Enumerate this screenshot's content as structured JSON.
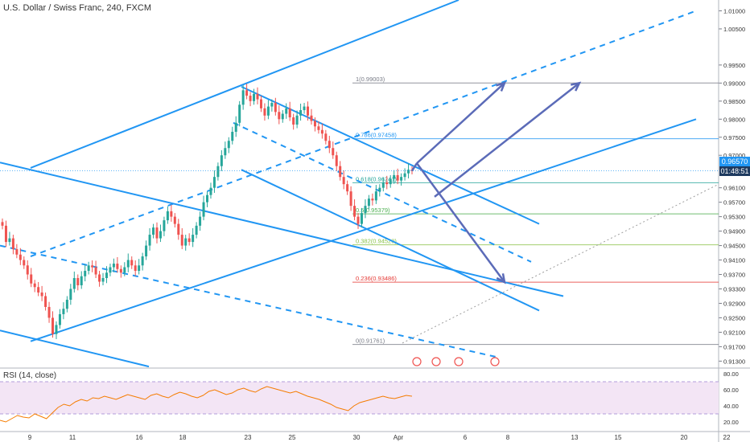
{
  "header": {
    "title": "U.S. Dollar / Swiss Franc, 240, FXCM"
  },
  "price_tags": {
    "current_price": "0.96570",
    "countdown": "01:48:51"
  },
  "rsi": {
    "title": "RSI (14, close)",
    "ticks": [
      "80.00",
      "60.00",
      "40.00",
      "20.00"
    ],
    "band_upper": 70,
    "band_lower": 30
  },
  "colors": {
    "up": "#26a69a",
    "down": "#ef5350",
    "channel": "#2196f3",
    "arrow": "#5b6bb8",
    "rsi_line": "#f57c00",
    "rsi_band": "#f3e5f5",
    "countdown_bg": "#1e3a5f",
    "price_bg": "#2196f3"
  },
  "chart_data": {
    "type": "candlestick",
    "price_axis": {
      "range": [
        0.9113,
        1.013
      ],
      "tick_labels": [
        "1.01000",
        "1.00500",
        "0.99500",
        "0.99000",
        "0.98500",
        "0.98000",
        "0.97500",
        "0.97000",
        "0.96100",
        "0.95700",
        "0.95300",
        "0.94900",
        "0.94500",
        "0.94100",
        "0.93700",
        "0.93300",
        "0.92900",
        "0.92500",
        "0.92100",
        "0.91700",
        "0.91300"
      ]
    },
    "x_axis": {
      "tick_labels": [
        "9",
        "11",
        "16",
        "18",
        "23",
        "25",
        "30",
        "Apr",
        "6",
        "8",
        "13",
        "15",
        "20",
        "22"
      ]
    },
    "fib_levels": [
      {
        "label": "1(0.99003)",
        "value": 0.99003,
        "color": "#787b86"
      },
      {
        "label": "0.786(0.97458)",
        "value": 0.97458,
        "color": "#2196f3"
      },
      {
        "label": "0.618(0.96241)",
        "value": 0.96241,
        "color": "#26a69a"
      },
      {
        "label": "0.5(0.95379)",
        "value": 0.95379,
        "color": "#4caf50"
      },
      {
        "label": "0.382(0.94520)",
        "value": 0.9452,
        "color": "#8bc34a"
      },
      {
        "label": "0.236(0.93486)",
        "value": 0.93486,
        "color": "#e53935"
      },
      {
        "label": "0(0.91761)",
        "value": 0.91761,
        "color": "#787b86"
      }
    ],
    "candle_closes": [
      0.9505,
      0.946,
      0.947,
      0.944,
      0.9425,
      0.941,
      0.9395,
      0.937,
      0.9345,
      0.9335,
      0.932,
      0.931,
      0.928,
      0.925,
      0.9205,
      0.923,
      0.926,
      0.9275,
      0.93,
      0.933,
      0.936,
      0.934,
      0.9365,
      0.938,
      0.9395,
      0.939,
      0.937,
      0.935,
      0.936,
      0.9375,
      0.939,
      0.94,
      0.9385,
      0.9375,
      0.939,
      0.941,
      0.9395,
      0.938,
      0.9395,
      0.942,
      0.945,
      0.948,
      0.95,
      0.947,
      0.949,
      0.952,
      0.9545,
      0.953,
      0.951,
      0.948,
      0.945,
      0.947,
      0.946,
      0.948,
      0.9505,
      0.953,
      0.957,
      0.959,
      0.961,
      0.964,
      0.967,
      0.97,
      0.972,
      0.974,
      0.9765,
      0.979,
      0.984,
      0.988,
      0.9865,
      0.985,
      0.987,
      0.9855,
      0.983,
      0.981,
      0.9835,
      0.9845,
      0.982,
      0.98,
      0.9815,
      0.983,
      0.9805,
      0.9785,
      0.981,
      0.9825,
      0.9835,
      0.981,
      0.9795,
      0.978,
      0.977,
      0.976,
      0.974,
      0.972,
      0.97,
      0.967,
      0.964,
      0.962,
      0.96,
      0.956,
      0.953,
      0.951,
      0.954,
      0.956,
      0.958,
      0.9575,
      0.96,
      0.961,
      0.9625,
      0.962,
      0.9635,
      0.9645,
      0.963,
      0.964,
      0.965,
      0.966,
      0.9657
    ],
    "rsi_values": [
      22,
      20,
      24,
      28,
      26,
      25,
      30,
      27,
      24,
      31,
      38,
      42,
      40,
      45,
      48,
      46,
      50,
      49,
      52,
      50,
      48,
      51,
      54,
      52,
      50,
      48,
      53,
      55,
      52,
      50,
      54,
      57,
      55,
      52,
      50,
      53,
      58,
      60,
      57,
      54,
      56,
      60,
      62,
      59,
      57,
      61,
      64,
      62,
      60,
      58,
      56,
      58,
      55,
      52,
      50,
      48,
      45,
      42,
      38,
      36,
      34,
      40,
      44,
      46,
      48,
      50,
      52,
      50,
      49,
      51,
      53,
      52
    ],
    "series": [
      {
        "name": "USDCHF",
        "values": []
      }
    ],
    "annotations": {
      "forecast_targets": [
        0.99003,
        0.93486
      ]
    }
  }
}
